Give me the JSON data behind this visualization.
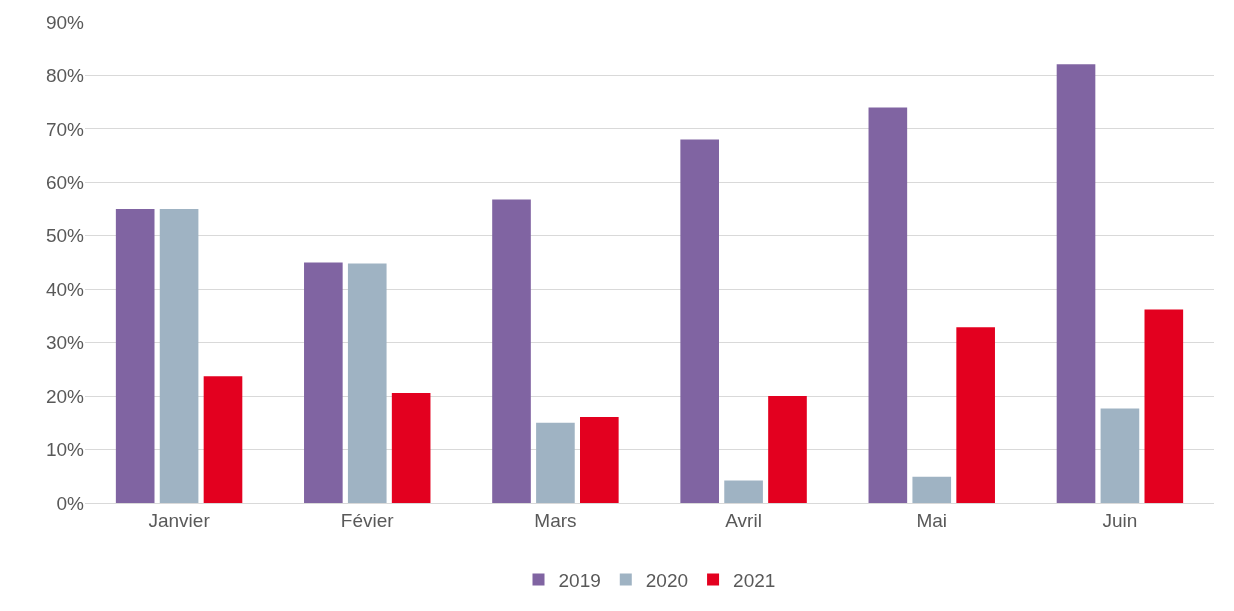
{
  "chart_data": {
    "type": "bar",
    "categories": [
      "Janvier",
      "Févier",
      "Mars",
      "Avril",
      "Mai",
      "Juin"
    ],
    "series": [
      {
        "name": "2019",
        "color": "#8064a2",
        "values": [
          55,
          45,
          56.8,
          68,
          74,
          82.1
        ]
      },
      {
        "name": "2020",
        "color": "#9fb3c3",
        "values": [
          55,
          44.8,
          15,
          4.2,
          4.9,
          17.7
        ]
      },
      {
        "name": "2021",
        "color": "#e3001f",
        "values": [
          23.7,
          20.6,
          16.1,
          20,
          32.9,
          36.2
        ]
      }
    ],
    "ylim": [
      0,
      90
    ],
    "yticks": [
      {
        "value": 0,
        "label": "0%"
      },
      {
        "value": 10,
        "label": "10%"
      },
      {
        "value": 20,
        "label": "20%"
      },
      {
        "value": 30,
        "label": "30%"
      },
      {
        "value": 40,
        "label": "40%"
      },
      {
        "value": 50,
        "label": "50%"
      },
      {
        "value": 60,
        "label": "60%"
      },
      {
        "value": 70,
        "label": "70%"
      },
      {
        "value": 80,
        "label": "80%"
      },
      {
        "value": 90,
        "label": "90%"
      }
    ],
    "grid": "y",
    "legend": "bottom"
  }
}
